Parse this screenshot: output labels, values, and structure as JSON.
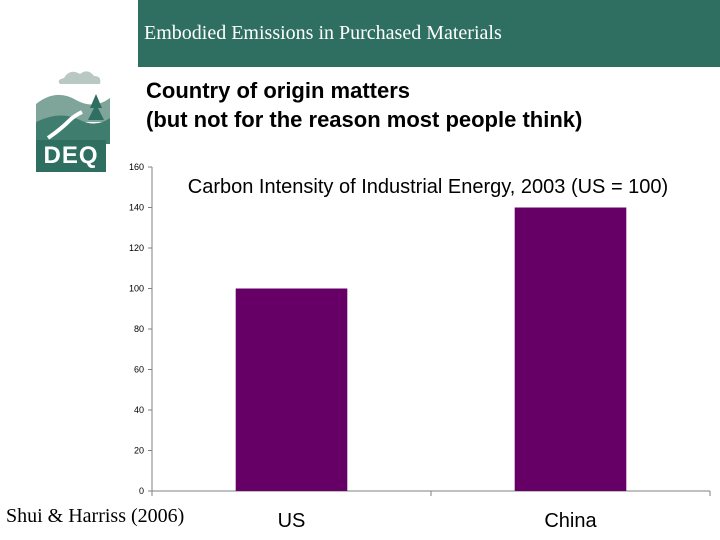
{
  "header": {
    "title": "Embodied Emissions in Purchased Materials"
  },
  "logo": {
    "text": "DEQ"
  },
  "subtitle": {
    "line1": "Country of origin matters",
    "line2": "(but not for the reason most people think)"
  },
  "source": "Shui & Harriss (2006)",
  "colors": {
    "header": "#2f6f62",
    "bar": "#660066"
  },
  "chart_data": {
    "type": "bar",
    "title": "Carbon Intensity of Industrial Energy, 2003 (US = 100)",
    "categories": [
      "US",
      "China"
    ],
    "values": [
      100,
      140
    ],
    "ylim": [
      0,
      160
    ],
    "yticks": [
      0,
      20,
      40,
      60,
      80,
      100,
      120,
      140,
      160
    ],
    "xlabel": "",
    "ylabel": "",
    "grid": false
  }
}
